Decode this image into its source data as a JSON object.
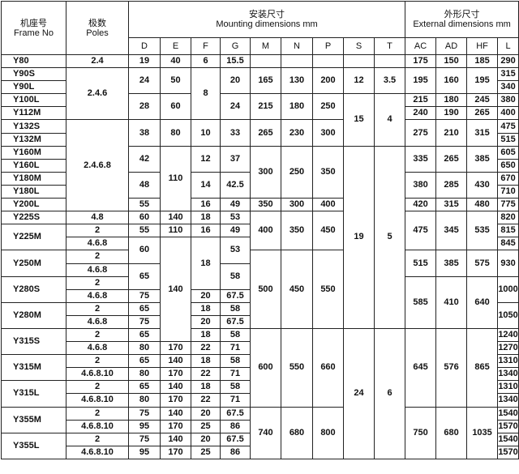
{
  "header": {
    "frame_cn": "机座号",
    "frame_en": "Frame No",
    "poles_cn": "极数",
    "poles_en": "Poles",
    "mounting_cn": "安装尺寸",
    "mounting_en": "Mounting dimensions  mm",
    "external_cn": "外形尺寸",
    "external_en": "External dimensions  mm",
    "mounting_cols": [
      "D",
      "E",
      "F",
      "G",
      "M",
      "N",
      "P",
      "S",
      "T"
    ],
    "external_cols": [
      "AC",
      "AD",
      "HF",
      "L"
    ]
  },
  "columns": [
    "frame",
    "poles",
    "D",
    "E",
    "F",
    "G",
    "M",
    "N",
    "P",
    "S",
    "T",
    "AC",
    "AD",
    "HF",
    "L"
  ],
  "rows": [
    [
      [
        "Y80"
      ],
      [
        "2.4"
      ],
      [
        "19"
      ],
      [
        "40"
      ],
      [
        "6"
      ],
      [
        "15.5"
      ],
      [
        ""
      ],
      [
        ""
      ],
      [
        ""
      ],
      [
        ""
      ],
      [
        ""
      ],
      [
        "175"
      ],
      [
        "150"
      ],
      [
        "185"
      ],
      [
        "290"
      ]
    ],
    [
      [
        "Y90S"
      ],
      [
        "2.4.6",
        4
      ],
      [
        "24",
        2
      ],
      [
        "50",
        2
      ],
      [
        "8",
        4
      ],
      [
        "20",
        2
      ],
      [
        "165",
        2
      ],
      [
        "130",
        2
      ],
      [
        "200",
        2
      ],
      [
        "12",
        2
      ],
      [
        "3.5",
        2
      ],
      [
        "195",
        2
      ],
      [
        "160",
        2
      ],
      [
        "195",
        2
      ],
      [
        "315"
      ]
    ],
    [
      [
        "Y90L"
      ],
      [
        "340"
      ]
    ],
    [
      [
        "Y100L"
      ],
      [
        "28",
        2
      ],
      [
        "60",
        2
      ],
      [
        "24",
        2
      ],
      [
        "215",
        2
      ],
      [
        "180",
        2
      ],
      [
        "250",
        2
      ],
      [
        "15",
        4
      ],
      [
        "4",
        4
      ],
      [
        "215"
      ],
      [
        "180"
      ],
      [
        "245"
      ],
      [
        "380"
      ]
    ],
    [
      [
        "Y112M"
      ],
      [
        "240"
      ],
      [
        "190"
      ],
      [
        "265"
      ],
      [
        "400"
      ]
    ],
    [
      [
        "Y132S"
      ],
      [
        "2.4.6.8",
        7
      ],
      [
        "38",
        2
      ],
      [
        "80",
        2
      ],
      [
        "10",
        2
      ],
      [
        "33",
        2
      ],
      [
        "265",
        2
      ],
      [
        "230",
        2
      ],
      [
        "300",
        2
      ],
      [
        "275",
        2
      ],
      [
        "210",
        2
      ],
      [
        "315",
        2
      ],
      [
        "475"
      ]
    ],
    [
      [
        "Y132M"
      ],
      [
        "515"
      ]
    ],
    [
      [
        "Y160M"
      ],
      [
        "42",
        2
      ],
      [
        "110",
        5
      ],
      [
        "12",
        2
      ],
      [
        "37",
        2
      ],
      [
        "300",
        4
      ],
      [
        "250",
        4
      ],
      [
        "350",
        4
      ],
      [
        "19",
        14
      ],
      [
        "5",
        14
      ],
      [
        "335",
        2
      ],
      [
        "265",
        2
      ],
      [
        "385",
        2
      ],
      [
        "605"
      ]
    ],
    [
      [
        "Y160L"
      ],
      [
        "650"
      ]
    ],
    [
      [
        "Y180M"
      ],
      [
        "48",
        2
      ],
      [
        "14",
        2
      ],
      [
        "42.5",
        2
      ],
      [
        "380",
        2
      ],
      [
        "285",
        2
      ],
      [
        "430",
        2
      ],
      [
        "670"
      ]
    ],
    [
      [
        "Y180L"
      ],
      [
        "710"
      ]
    ],
    [
      [
        "Y200L"
      ],
      [
        "55"
      ],
      [
        "16"
      ],
      [
        "49"
      ],
      [
        "350"
      ],
      [
        "300"
      ],
      [
        "400"
      ],
      [
        "420"
      ],
      [
        "315"
      ],
      [
        "480"
      ],
      [
        "775"
      ]
    ],
    [
      [
        "Y225S"
      ],
      [
        "4.8"
      ],
      [
        "60"
      ],
      [
        "140"
      ],
      [
        "18"
      ],
      [
        "53"
      ],
      [
        "400",
        3
      ],
      [
        "350",
        3
      ],
      [
        "450",
        3
      ],
      [
        "475",
        3
      ],
      [
        "345",
        3
      ],
      [
        "535",
        3
      ],
      [
        "820"
      ]
    ],
    [
      [
        "Y225M",
        2
      ],
      [
        "2"
      ],
      [
        "55"
      ],
      [
        "110"
      ],
      [
        "16"
      ],
      [
        "49"
      ],
      [
        "815"
      ]
    ],
    [
      [
        "4.6.8"
      ],
      [
        "60",
        2
      ],
      [
        "140",
        8
      ],
      [
        "18",
        4
      ],
      [
        "53",
        2
      ],
      [
        "845"
      ]
    ],
    [
      [
        "Y250M",
        2
      ],
      [
        "2"
      ],
      [
        "500",
        6
      ],
      [
        "450",
        6
      ],
      [
        "550",
        6
      ],
      [
        "515",
        2
      ],
      [
        "385",
        2
      ],
      [
        "575",
        2
      ],
      [
        "930",
        2
      ]
    ],
    [
      [
        "4.6.8"
      ],
      [
        "65",
        2
      ],
      [
        "58",
        2
      ]
    ],
    [
      [
        "Y280S",
        2
      ],
      [
        "2"
      ],
      [
        "585",
        4
      ],
      [
        "410",
        4
      ],
      [
        "640",
        4
      ],
      [
        "1000",
        2
      ]
    ],
    [
      [
        "4.6.8"
      ],
      [
        "75"
      ],
      [
        "20"
      ],
      [
        "67.5"
      ]
    ],
    [
      [
        "Y280M",
        2
      ],
      [
        "2"
      ],
      [
        "65"
      ],
      [
        "18"
      ],
      [
        "58"
      ],
      [
        "1050",
        2
      ]
    ],
    [
      [
        "4.6.8"
      ],
      [
        "75"
      ],
      [
        "20"
      ],
      [
        "67.5"
      ]
    ],
    [
      [
        "Y315S",
        2
      ],
      [
        "2"
      ],
      [
        "65"
      ],
      [
        "18"
      ],
      [
        "58"
      ],
      [
        "600",
        6
      ],
      [
        "550",
        6
      ],
      [
        "660",
        6
      ],
      [
        "24",
        10
      ],
      [
        "6",
        10
      ],
      [
        "645",
        6
      ],
      [
        "576",
        6
      ],
      [
        "865",
        6
      ],
      [
        "1240"
      ]
    ],
    [
      [
        "4.6.8"
      ],
      [
        "80"
      ],
      [
        "170"
      ],
      [
        "22"
      ],
      [
        "71"
      ],
      [
        "1270"
      ]
    ],
    [
      [
        "Y315M",
        2
      ],
      [
        "2"
      ],
      [
        "65"
      ],
      [
        "140"
      ],
      [
        "18"
      ],
      [
        "58"
      ],
      [
        "1310"
      ]
    ],
    [
      [
        "4.6.8.10"
      ],
      [
        "80"
      ],
      [
        "170"
      ],
      [
        "22"
      ],
      [
        "71"
      ],
      [
        "1340"
      ]
    ],
    [
      [
        "Y315L",
        2
      ],
      [
        "2"
      ],
      [
        "65"
      ],
      [
        "140"
      ],
      [
        "18"
      ],
      [
        "58"
      ],
      [
        "1310"
      ]
    ],
    [
      [
        "4.6.8.10"
      ],
      [
        "80"
      ],
      [
        "170"
      ],
      [
        "22"
      ],
      [
        "71"
      ],
      [
        "1340"
      ]
    ],
    [
      [
        "Y355M",
        2
      ],
      [
        "2"
      ],
      [
        "75"
      ],
      [
        "140"
      ],
      [
        "20"
      ],
      [
        "67.5"
      ],
      [
        "740",
        4
      ],
      [
        "680",
        4
      ],
      [
        "800",
        4
      ],
      [
        "750",
        4
      ],
      [
        "680",
        4
      ],
      [
        "1035",
        4
      ],
      [
        "1540"
      ]
    ],
    [
      [
        "4.6.8.10"
      ],
      [
        "95"
      ],
      [
        "170"
      ],
      [
        "25"
      ],
      [
        "86"
      ],
      [
        "1570"
      ]
    ],
    [
      [
        "Y355L",
        2
      ],
      [
        "2"
      ],
      [
        "75"
      ],
      [
        "140"
      ],
      [
        "20"
      ],
      [
        "67.5"
      ],
      [
        "1540"
      ]
    ],
    [
      [
        "4.6.8.10"
      ],
      [
        "95"
      ],
      [
        "170"
      ],
      [
        "25"
      ],
      [
        "86"
      ],
      [
        "1570"
      ]
    ]
  ]
}
